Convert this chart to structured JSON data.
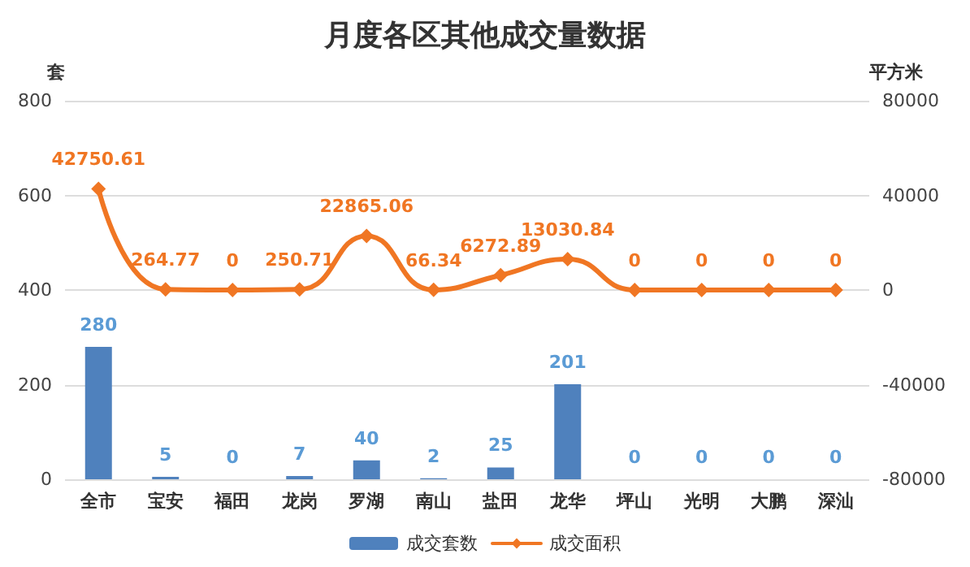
{
  "chart_data": {
    "type": "bar",
    "title": "月度各区其他成交量数据",
    "ylabel": "套",
    "y2label": "平方米",
    "categories": [
      "全市",
      "宝安",
      "福田",
      "龙岗",
      "罗湖",
      "南山",
      "盐田",
      "龙华",
      "坪山",
      "光明",
      "大鹏",
      "深汕"
    ],
    "series": [
      {
        "name": "成交套数",
        "color": "#4f81bd",
        "values": [
          280,
          5,
          0,
          7,
          40,
          2,
          25,
          201,
          0,
          0,
          0,
          0
        ]
      },
      {
        "name": "成交面积",
        "type": "line",
        "axis": "y2",
        "color": "#f07623",
        "marker": "diamond",
        "values": [
          42750.61,
          264.77,
          0,
          250.71,
          22865.06,
          66.34,
          6272.89,
          13030.84,
          0,
          0,
          0,
          0
        ]
      }
    ],
    "ylim": [
      0,
      800
    ],
    "yticks": [
      0,
      200,
      400,
      600,
      800
    ],
    "y2lim": [
      -80000,
      80000
    ],
    "y2ticks": [
      -80000,
      -40000,
      0,
      40000,
      80000
    ],
    "grid": "y",
    "legend": "bottom",
    "data_labels": true
  }
}
